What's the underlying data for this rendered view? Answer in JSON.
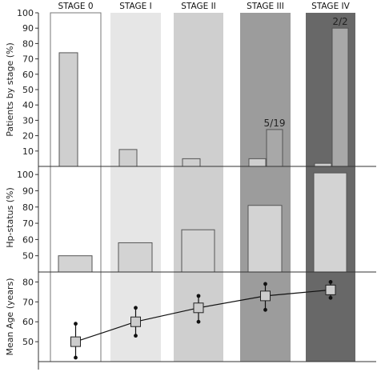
{
  "chart_data": {
    "type": "composite",
    "stages": [
      "STAGE 0",
      "STAGE I",
      "STAGE II",
      "STAGE III",
      "STAGE IV"
    ],
    "stage_colors": [
      "#ffffff",
      "#e6e6e6",
      "#cfcfcf",
      "#9c9c9c",
      "#686868"
    ],
    "panels": [
      {
        "type": "bar",
        "ylabel": "Patients by stage (%)",
        "ylim": [
          0,
          100
        ],
        "yticks": [
          10,
          20,
          30,
          40,
          50,
          60,
          70,
          80,
          90,
          100
        ],
        "series": [
          {
            "values": [
              74,
              11,
              5,
              5,
              2
            ],
            "color": "#cfcfcf"
          },
          {
            "values": [
              null,
              null,
              null,
              24,
              90
            ],
            "color": "#a8a8a8"
          }
        ],
        "annotations": [
          {
            "stage_index": 3,
            "text": "5/19"
          },
          {
            "stage_index": 4,
            "text": "2/2"
          }
        ]
      },
      {
        "type": "bar",
        "ylabel": "Hp-status (%)",
        "ylim": [
          40,
          105
        ],
        "yticks": [
          50,
          60,
          70,
          80,
          90,
          100
        ],
        "values": [
          50,
          58,
          66,
          81,
          101
        ],
        "color": "#d3d3d3"
      },
      {
        "type": "line",
        "ylabel": "Mean Age (years)",
        "ylim": [
          40,
          85
        ],
        "yticks": [
          50,
          60,
          70,
          80
        ],
        "mean": [
          50,
          60,
          67,
          73,
          76
        ],
        "lower": [
          42,
          53,
          60,
          66,
          72
        ],
        "upper": [
          59,
          67,
          73,
          79,
          80
        ],
        "marker_color": "#cccccc"
      }
    ]
  }
}
